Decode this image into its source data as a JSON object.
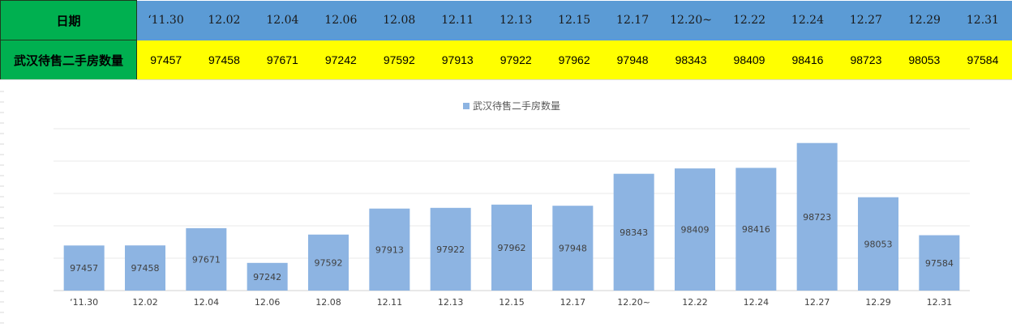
{
  "table": {
    "date_header": "日期",
    "count_header": "武汉待售二手房数量",
    "dates": [
      "‘11.30",
      "12.02",
      "12.04",
      "12.06",
      "12.08",
      "12.11",
      "12.13",
      "12.15",
      "12.17",
      "12.20~",
      "12.22",
      "12.24",
      "12.27",
      "12.29",
      "12.31"
    ],
    "counts": [
      "97457",
      "97458",
      "97671",
      "97242",
      "97592",
      "97913",
      "97922",
      "97962",
      "97948",
      "98343",
      "98409",
      "98416",
      "98723",
      "98053",
      "97584"
    ]
  },
  "colors": {
    "header_green": "#00b050",
    "date_row_blue": "#5b9bd5",
    "count_row_yellow": "#ffff00",
    "bar_blue": "#8db4e2"
  },
  "chart_data": {
    "type": "bar",
    "categories": [
      "‘11.30",
      "12.02",
      "12.04",
      "12.06",
      "12.08",
      "12.11",
      "12.13",
      "12.15",
      "12.17",
      "12.20~",
      "12.22",
      "12.24",
      "12.27",
      "12.29",
      "12.31"
    ],
    "series": [
      {
        "name": "武汉待售二手房数量",
        "values": [
          97457,
          97458,
          97671,
          97242,
          97592,
          97913,
          97922,
          97962,
          97948,
          98343,
          98409,
          98416,
          98723,
          98053,
          97584
        ]
      }
    ],
    "data_labels": true,
    "legend_position": "top-center",
    "gridlines": true,
    "ylim": [
      96900,
      98900
    ]
  }
}
